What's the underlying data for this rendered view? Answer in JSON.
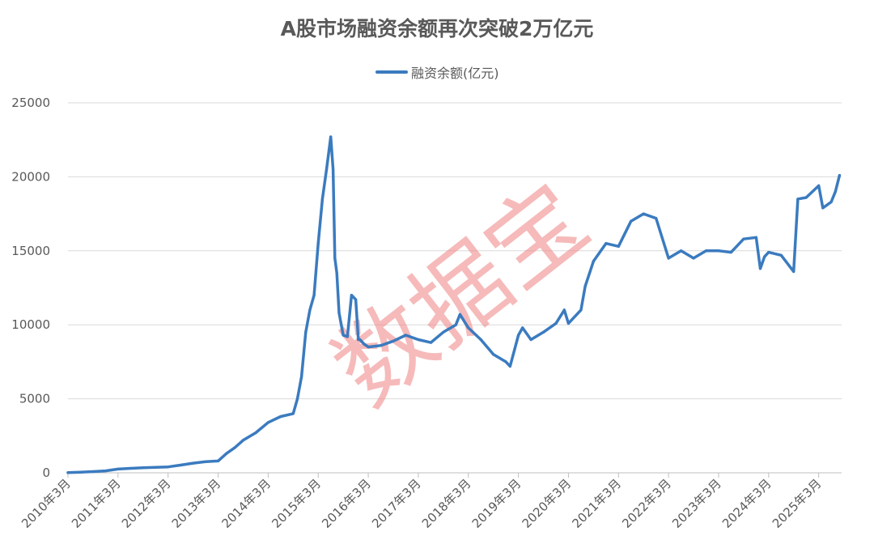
{
  "colors": {
    "series": "#3b7bbf",
    "grid": "#d9d9d9",
    "axis": "#bfbfbf",
    "text": "#595959",
    "watermark": "#f08c8c"
  },
  "watermark": "数据宝",
  "chart_data": {
    "type": "line",
    "title": "A股市场融资余额再次突破2万亿元",
    "legend": "top-center",
    "grid": true,
    "xlabel": "",
    "ylabel": "",
    "ylim": [
      0,
      25000
    ],
    "yticks": [
      "0",
      "5000",
      "10000",
      "15000",
      "20000",
      "25000"
    ],
    "x_tick_labels": [
      "2010年3月",
      "2011年3月",
      "2012年3月",
      "2013年3月",
      "2014年3月",
      "2015年3月",
      "2016年3月",
      "2017年3月",
      "2018年3月",
      "2019年3月",
      "2020年3月",
      "2021年3月",
      "2022年3月",
      "2023年3月",
      "2024年3月",
      "2025年3月"
    ],
    "series": [
      {
        "name": "融资余额(亿元)",
        "x": [
          "2010-03",
          "2010-06",
          "2010-09",
          "2010-12",
          "2011-03",
          "2011-06",
          "2011-09",
          "2011-12",
          "2012-03",
          "2012-06",
          "2012-09",
          "2012-12",
          "2013-03",
          "2013-05",
          "2013-07",
          "2013-09",
          "2013-12",
          "2014-03",
          "2014-06",
          "2014-09",
          "2014-10",
          "2014-11",
          "2014-12",
          "2015-01",
          "2015-02",
          "2015-03",
          "2015-04",
          "2015-05",
          "2015-06",
          "2015-06-18",
          "2015-07",
          "2015-07-15",
          "2015-08",
          "2015-09",
          "2015-10",
          "2015-11",
          "2015-12",
          "2015-12-20",
          "2016-01",
          "2016-02",
          "2016-03",
          "2016-06",
          "2016-09",
          "2016-12",
          "2017-03",
          "2017-06",
          "2017-09",
          "2017-12",
          "2018-01",
          "2018-03",
          "2018-06",
          "2018-09",
          "2018-12",
          "2019-01",
          "2019-03",
          "2019-04",
          "2019-06",
          "2019-09",
          "2019-12",
          "2020-02",
          "2020-03",
          "2020-06",
          "2020-07",
          "2020-09",
          "2020-12",
          "2021-03",
          "2021-06",
          "2021-09",
          "2021-12",
          "2022-03",
          "2022-06",
          "2022-09",
          "2022-12",
          "2023-03",
          "2023-06",
          "2023-09",
          "2023-12",
          "2024-01",
          "2024-02",
          "2024-03",
          "2024-06",
          "2024-09",
          "2024-10",
          "2024-12",
          "2025-03",
          "2025-04",
          "2025-06",
          "2025-07",
          "2025-08"
        ],
        "values": [
          10,
          40,
          80,
          130,
          250,
          300,
          340,
          370,
          400,
          520,
          650,
          750,
          800,
          1300,
          1700,
          2200,
          2700,
          3400,
          3800,
          4000,
          5000,
          6500,
          9500,
          11000,
          12000,
          15500,
          18500,
          20500,
          22700,
          20500,
          14500,
          13500,
          10800,
          9300,
          9200,
          12000,
          11700,
          9000,
          9000,
          8700,
          8500,
          8600,
          8900,
          9300,
          9000,
          8800,
          9500,
          10000,
          10700,
          9800,
          9000,
          8000,
          7500,
          7200,
          9300,
          9800,
          9000,
          9500,
          10100,
          11000,
          10100,
          11000,
          12600,
          14300,
          15500,
          15300,
          17000,
          17500,
          17200,
          14500,
          15000,
          14500,
          15000,
          15000,
          14900,
          15800,
          15900,
          13800,
          14600,
          14900,
          14700,
          13600,
          18500,
          18600,
          19400,
          17900,
          18300,
          19000,
          20100
        ]
      }
    ]
  }
}
